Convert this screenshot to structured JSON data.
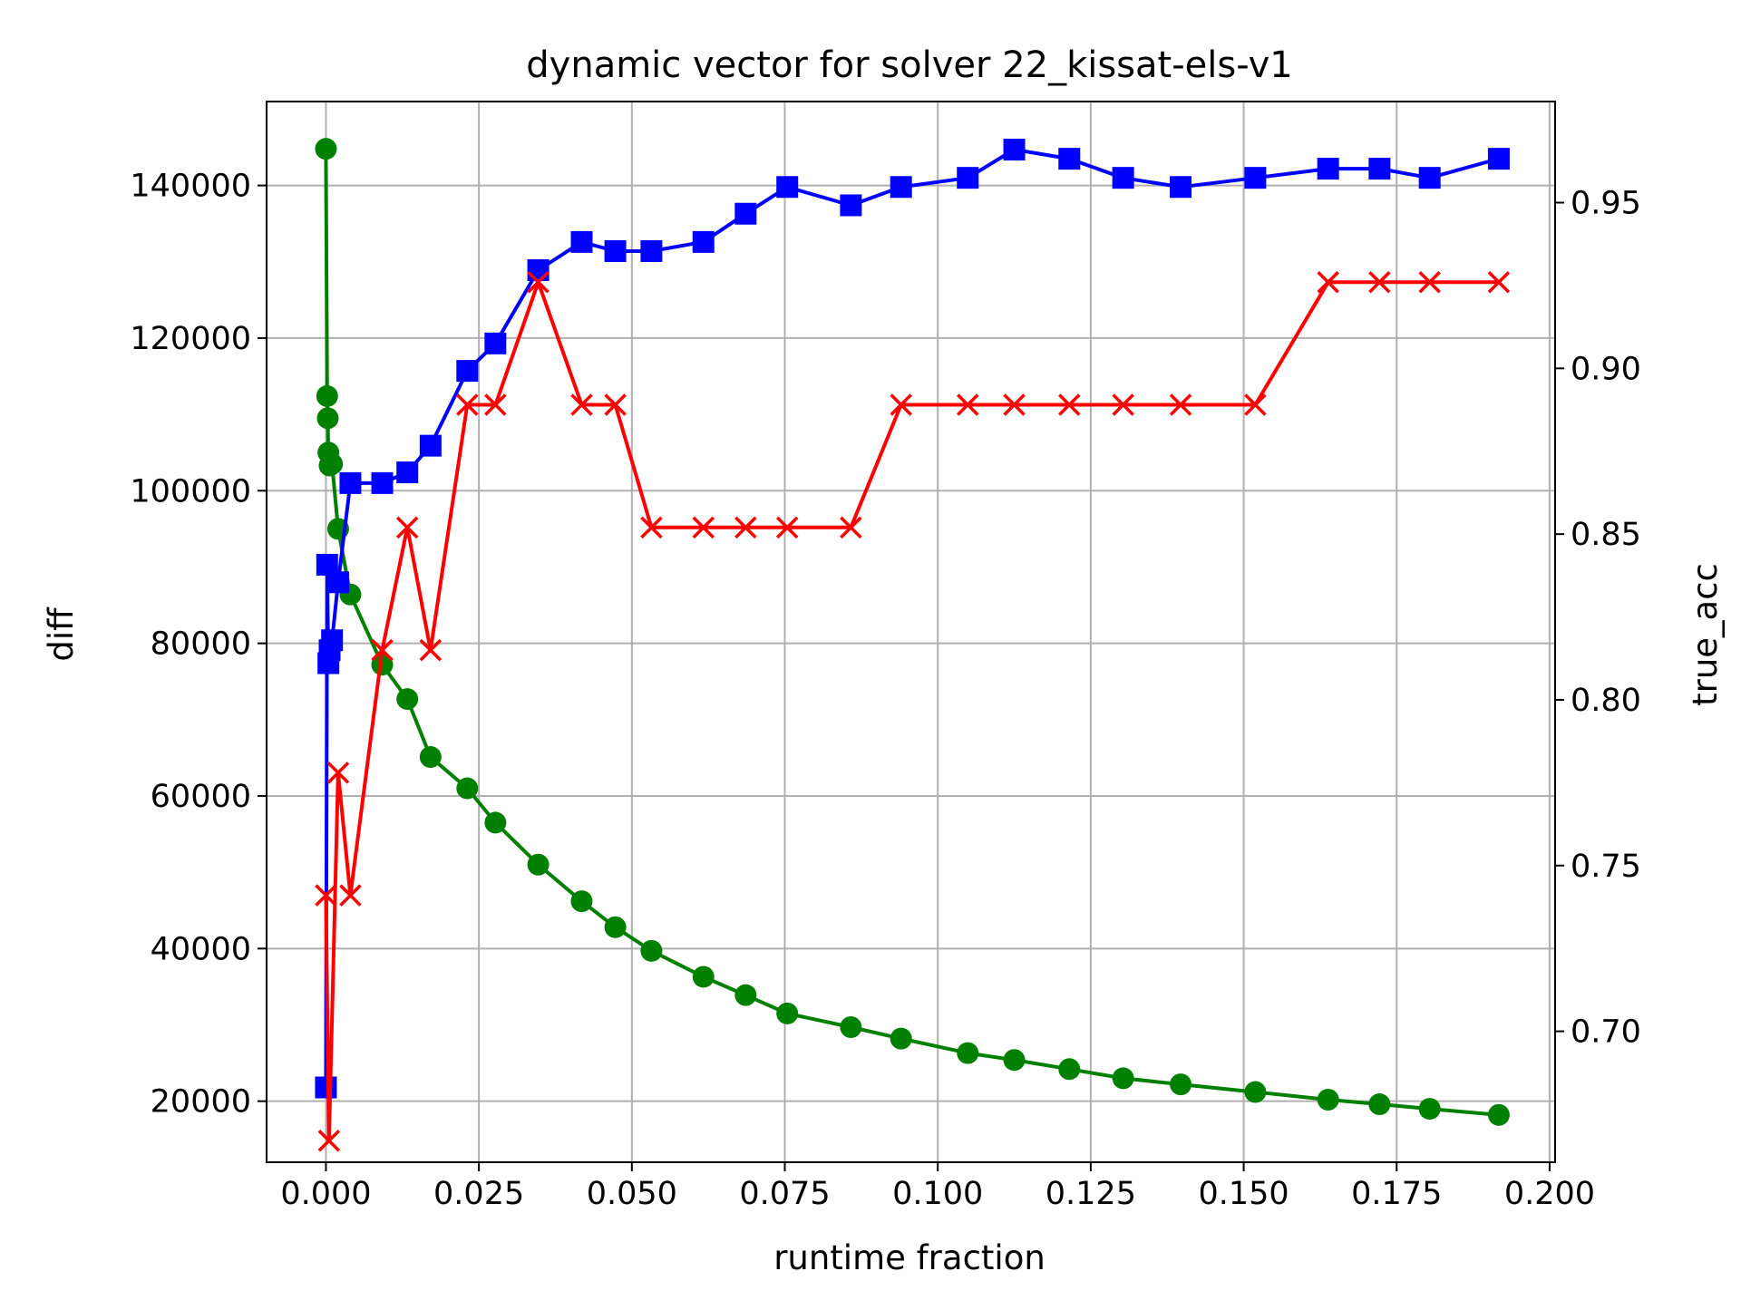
{
  "chart_data": {
    "type": "line",
    "title": "dynamic vector for solver 22_kissat-els-v1",
    "xlabel": "runtime fraction",
    "ylabel_left": "diff",
    "ylabel_right": "true_acc",
    "xlim": [
      -0.0097,
      0.2009
    ],
    "ylim_left": [
      12000,
      151000
    ],
    "ylim_right": [
      0.6605,
      0.9805
    ],
    "x_ticks": [
      0.0,
      0.025,
      0.05,
      0.075,
      0.1,
      0.125,
      0.15,
      0.175,
      0.2
    ],
    "x_tick_labels": [
      "0.000",
      "0.025",
      "0.050",
      "0.075",
      "0.100",
      "0.125",
      "0.150",
      "0.175",
      "0.200"
    ],
    "y_left_ticks": [
      20000,
      40000,
      60000,
      80000,
      100000,
      120000,
      140000
    ],
    "y_left_tick_labels": [
      "20000",
      "40000",
      "60000",
      "80000",
      "100000",
      "120000",
      "140000"
    ],
    "y_right_ticks": [
      0.7,
      0.75,
      0.8,
      0.85,
      0.9,
      0.95
    ],
    "y_right_tick_labels": [
      "0.70",
      "0.75",
      "0.80",
      "0.85",
      "0.90",
      "0.95"
    ],
    "grid": true,
    "colors": {
      "diff": "#008000",
      "blue_series": "#0000ff",
      "true_acc": "#ff0000",
      "ylabel_left": "#008000",
      "ylabel_right": "#ff0000"
    },
    "series": [
      {
        "axis": "left",
        "color": "#008000",
        "marker": "circle",
        "x": [
          0.0,
          0.0002,
          0.0003,
          0.0004,
          0.0006,
          0.001,
          0.002,
          0.004,
          0.0092,
          0.0133,
          0.0171,
          0.0231,
          0.0277,
          0.0347,
          0.0418,
          0.0473,
          0.0532,
          0.0617,
          0.0686,
          0.0754,
          0.0858,
          0.094,
          0.1049,
          0.1125,
          0.1215,
          0.1303,
          0.1397,
          0.1519,
          0.1638,
          0.1722,
          0.1804,
          0.1917
        ],
        "y": [
          144800,
          112400,
          109500,
          105000,
          103300,
          103500,
          95000,
          86400,
          77200,
          72700,
          65100,
          61000,
          56500,
          51000,
          46200,
          42800,
          39700,
          36300,
          33900,
          31500,
          29700,
          28200,
          26300,
          25400,
          24200,
          23000,
          22200,
          21200,
          20200,
          19600,
          19000,
          18200
        ]
      },
      {
        "axis": "left",
        "color": "#0000ff",
        "marker": "square",
        "x": [
          0.0,
          0.0002,
          0.0004,
          0.0006,
          0.001,
          0.002,
          0.004,
          0.0092,
          0.0133,
          0.0171,
          0.0231,
          0.0277,
          0.0347,
          0.0418,
          0.0473,
          0.0532,
          0.0617,
          0.0686,
          0.0754,
          0.0858,
          0.094,
          0.1049,
          0.1125,
          0.1215,
          0.1303,
          0.1397,
          0.1519,
          0.1638,
          0.1722,
          0.1804,
          0.1917
        ],
        "y": [
          21800,
          90300,
          77400,
          79100,
          80400,
          88000,
          101000,
          101000,
          102400,
          105900,
          115700,
          119300,
          128900,
          132600,
          131400,
          131400,
          132600,
          136300,
          139800,
          137400,
          139800,
          141000,
          144700,
          143500,
          141000,
          139800,
          141000,
          142200,
          142200,
          141000,
          143500
        ]
      },
      {
        "axis": "right",
        "color": "#ff0000",
        "marker": "x",
        "x": [
          0.0,
          0.0005,
          0.002,
          0.004,
          0.0092,
          0.0133,
          0.0171,
          0.0231,
          0.0277,
          0.0347,
          0.0418,
          0.0473,
          0.0532,
          0.0617,
          0.0686,
          0.0754,
          0.0858,
          0.094,
          0.1049,
          0.1125,
          0.1215,
          0.1303,
          0.1397,
          0.1519,
          0.1638,
          0.1722,
          0.1804,
          0.1917
        ],
        "y": [
          0.741,
          0.667,
          0.778,
          0.741,
          0.815,
          0.852,
          0.815,
          0.889,
          0.889,
          0.926,
          0.889,
          0.889,
          0.852,
          0.852,
          0.852,
          0.852,
          0.852,
          0.889,
          0.889,
          0.889,
          0.889,
          0.889,
          0.889,
          0.889,
          0.926,
          0.926,
          0.926,
          0.926
        ]
      }
    ]
  }
}
